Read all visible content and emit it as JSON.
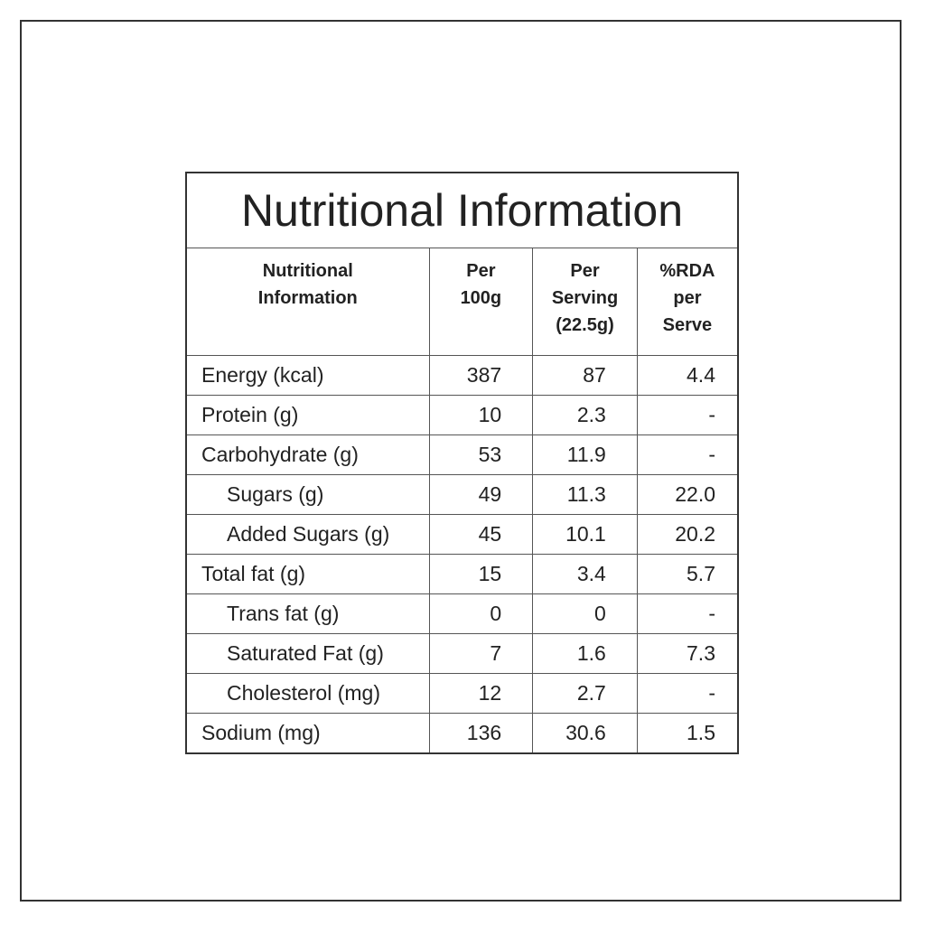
{
  "table": {
    "title": "Nutritional Information",
    "header": [
      [
        "Nutritional",
        "Information"
      ],
      [
        "Per",
        "100g"
      ],
      [
        "Per",
        "Serving",
        "(22.5g)"
      ],
      [
        "%RDA",
        "per",
        "Serve"
      ]
    ],
    "rows": [
      {
        "name": "Energy (kcal)",
        "indent": false,
        "cells": [
          "387",
          "87",
          "4.4"
        ]
      },
      {
        "name": "Protein (g)",
        "indent": false,
        "cells": [
          "10",
          "2.3",
          "-"
        ]
      },
      {
        "name": "Carbohydrate (g)",
        "indent": false,
        "cells": [
          "53",
          "11.9",
          "-"
        ]
      },
      {
        "name": "Sugars (g)",
        "indent": true,
        "cells": [
          "49",
          "11.3",
          "22.0"
        ]
      },
      {
        "name": "Added Sugars (g)",
        "indent": true,
        "cells": [
          "45",
          "10.1",
          "20.2"
        ]
      },
      {
        "name": "Total fat (g)",
        "indent": false,
        "cells": [
          "15",
          "3.4",
          "5.7"
        ]
      },
      {
        "name": "Trans fat (g)",
        "indent": true,
        "cells": [
          "0",
          "0",
          "-"
        ]
      },
      {
        "name": "Saturated Fat (g)",
        "indent": true,
        "cells": [
          "7",
          "1.6",
          "7.3"
        ]
      },
      {
        "name": "Cholesterol (mg)",
        "indent": true,
        "cells": [
          "12",
          "2.7",
          "-"
        ]
      },
      {
        "name": "Sodium (mg)",
        "indent": false,
        "cells": [
          "136",
          "30.6",
          "1.5"
        ]
      }
    ]
  }
}
